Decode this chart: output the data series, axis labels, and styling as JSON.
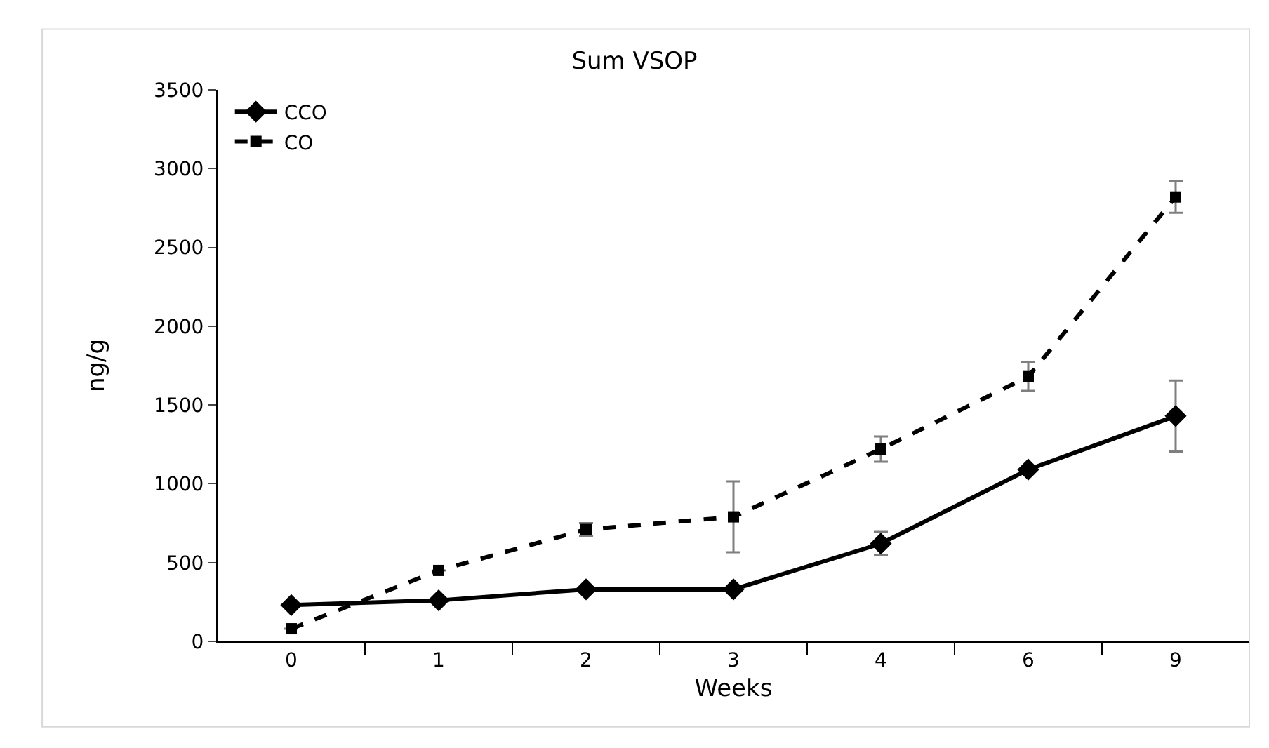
{
  "chart_data": {
    "type": "line",
    "title": "Sum VSOP",
    "xlabel": "Weeks",
    "ylabel": "ng/g",
    "categories": [
      "0",
      "1",
      "2",
      "3",
      "4",
      "6",
      "9"
    ],
    "ylim": [
      0,
      3500
    ],
    "yticks": [
      0,
      500,
      1000,
      1500,
      2000,
      2500,
      3000,
      3500
    ],
    "legend": "top left",
    "series": [
      {
        "name": "CCO",
        "color": "#000000",
        "marker": "diamond",
        "line_style": "solid",
        "values": [
          230,
          260,
          330,
          330,
          620,
          1090,
          1430
        ],
        "errors": [
          null,
          null,
          null,
          null,
          75,
          null,
          225
        ]
      },
      {
        "name": "CO",
        "color": "#000000",
        "marker": "square",
        "line_style": "dashed",
        "values": [
          80,
          450,
          710,
          790,
          1220,
          1680,
          2820
        ],
        "errors": [
          null,
          null,
          40,
          225,
          80,
          90,
          100
        ]
      }
    ]
  }
}
